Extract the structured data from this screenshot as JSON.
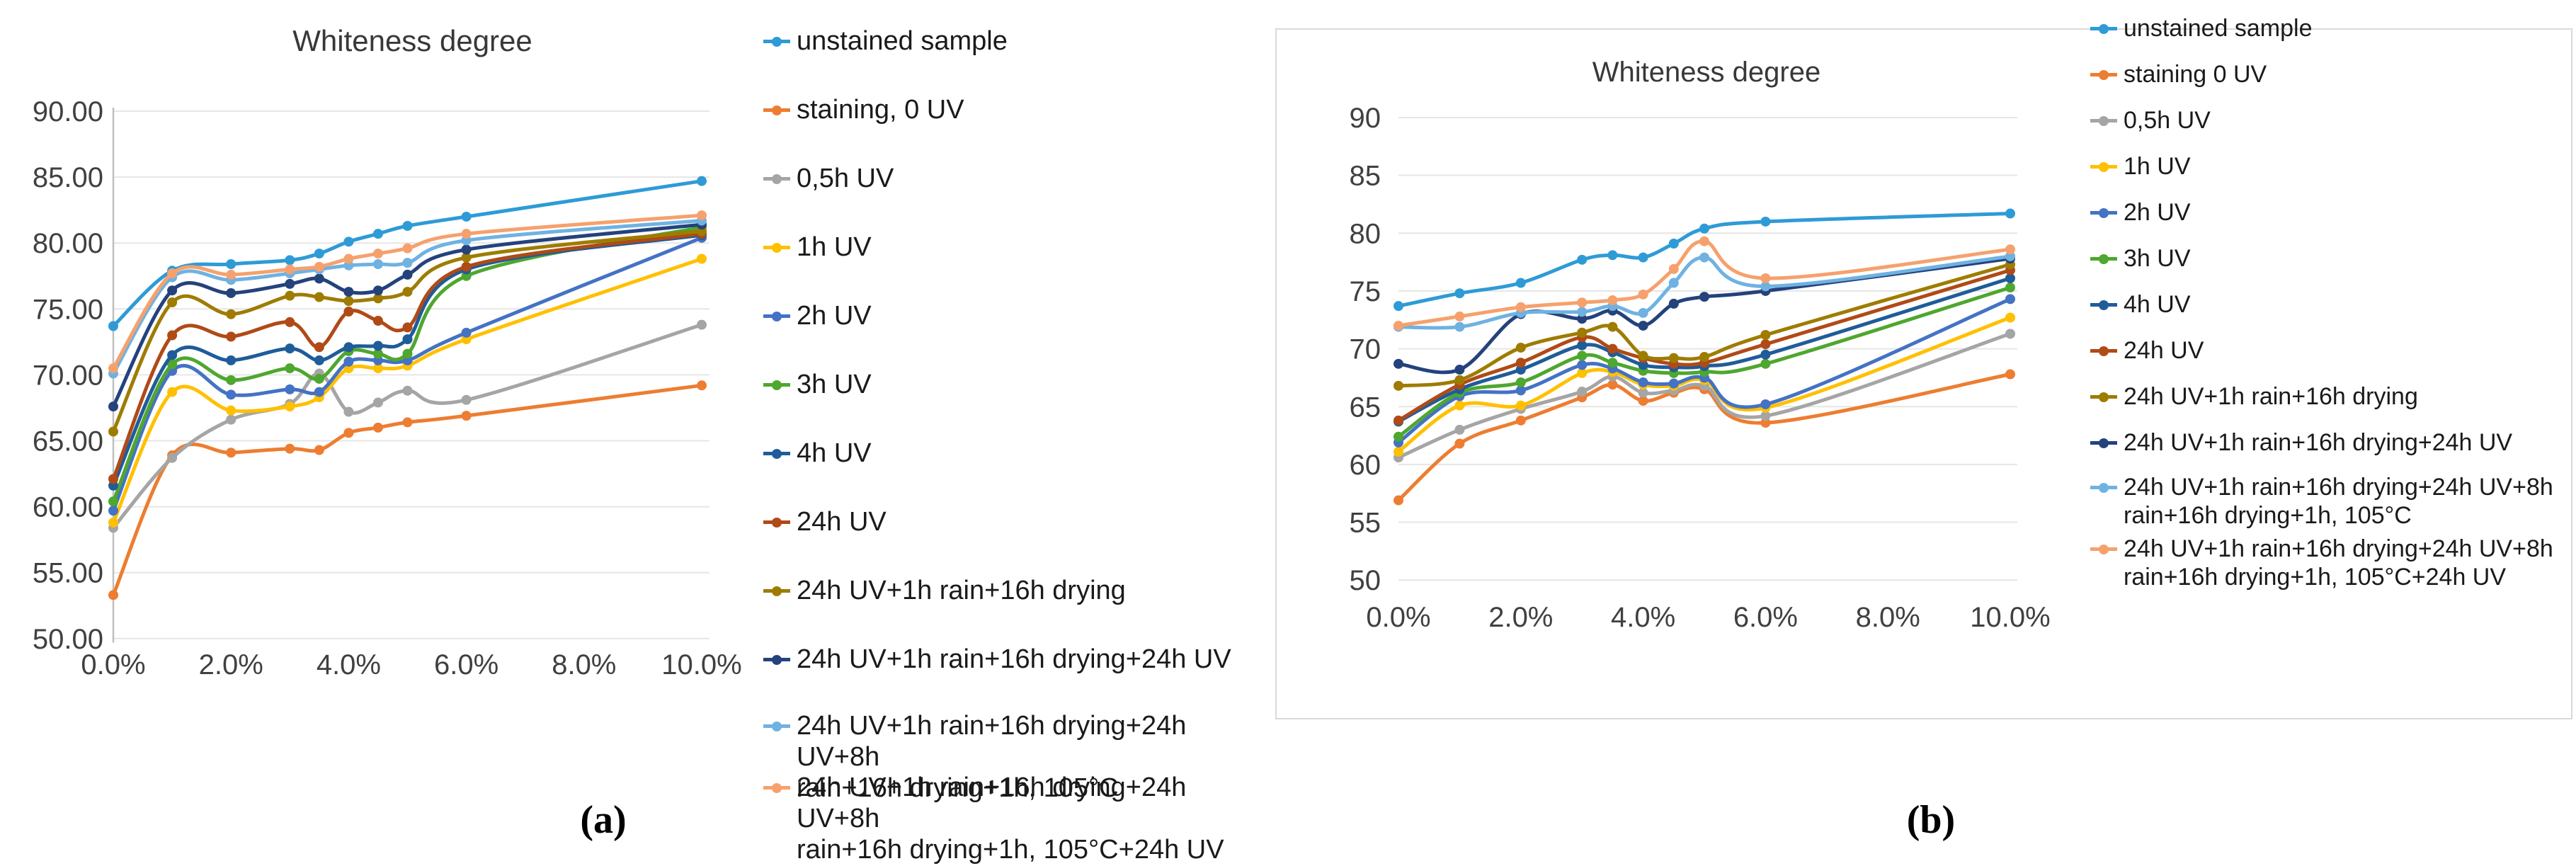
{
  "figure": {
    "captions": [
      "(a)",
      "(b)"
    ]
  },
  "style": {
    "background": "#ffffff",
    "gridline_color": "#e6e6e6",
    "axis_line_color": "#bfbfbf",
    "axis_text_color": "#404040",
    "panel_border_color": "#d9d9d9",
    "legend_text_color": "#1a1a1a"
  },
  "chart_data": [
    {
      "id": "a",
      "type": "line",
      "title": "Whiteness degree",
      "xlabel": "",
      "ylabel": "",
      "grid": true,
      "smoothed": true,
      "legend_position": "right",
      "ylim": [
        50,
        90
      ],
      "ytick_labels": [
        "90.00",
        "85.00",
        "80.00",
        "75.00",
        "70.00",
        "65.00",
        "60.00",
        "55.00",
        "50.00"
      ],
      "xtick_labels": [
        "0.0%",
        "2.0%",
        "4.0%",
        "6.0%",
        "8.0%",
        "10.0%"
      ],
      "x_percent": [
        0,
        1,
        2,
        3,
        3.5,
        4,
        4.5,
        5,
        6,
        10
      ],
      "series": [
        {
          "name": "unstained sample",
          "color": "#2e9bd6",
          "values": [
            73.7,
            77.9,
            78.4,
            78.7,
            79.2,
            80.1,
            80.7,
            81.3,
            82.0,
            84.7
          ]
        },
        {
          "name": "staining, 0 UV",
          "color": "#ed7d31",
          "values": [
            53.3,
            63.9,
            64.1,
            64.4,
            64.3,
            65.6,
            66.0,
            66.4,
            66.9,
            69.2
          ]
        },
        {
          "name": "0,5h UV",
          "color": "#a5a5a5",
          "values": [
            58.4,
            63.7,
            66.6,
            67.8,
            70.1,
            67.2,
            67.9,
            68.8,
            68.1,
            73.8
          ]
        },
        {
          "name": "1h UV",
          "color": "#ffc000",
          "values": [
            58.8,
            68.7,
            67.3,
            67.6,
            68.3,
            70.5,
            70.5,
            70.7,
            72.7,
            78.8
          ]
        },
        {
          "name": "2h UV",
          "color": "#4472c4",
          "values": [
            59.7,
            70.3,
            68.5,
            68.9,
            68.7,
            71.0,
            71.1,
            71.1,
            73.2,
            80.4
          ]
        },
        {
          "name": "3h UV",
          "color": "#4ea72e",
          "values": [
            60.4,
            70.8,
            69.6,
            70.5,
            69.7,
            71.8,
            71.6,
            71.6,
            77.5,
            81.2
          ]
        },
        {
          "name": "4h UV",
          "color": "#1f5c99",
          "values": [
            61.6,
            71.5,
            71.1,
            72.0,
            71.1,
            72.1,
            72.2,
            72.7,
            78.0,
            80.6
          ]
        },
        {
          "name": "24h UV",
          "color": "#b04a17",
          "values": [
            62.1,
            73.0,
            72.9,
            74.0,
            72.1,
            74.8,
            74.1,
            73.6,
            78.2,
            80.7
          ]
        },
        {
          "name": "24h UV+1h rain+16h drying",
          "color": "#9e7c00",
          "values": [
            65.7,
            75.5,
            74.6,
            76.0,
            75.9,
            75.6,
            75.8,
            76.3,
            78.9,
            80.9
          ]
        },
        {
          "name": "24h UV+1h rain+16h drying+24h UV",
          "color": "#24427c",
          "values": [
            67.6,
            76.4,
            76.2,
            76.9,
            77.3,
            76.3,
            76.4,
            77.6,
            79.5,
            81.4
          ]
        },
        {
          "name": "24h UV+1h rain+16h drying+24h UV+8h\nrain+16h drying+1h, 105°C",
          "color": "#6fb2e2",
          "values": [
            70.1,
            77.4,
            77.2,
            77.7,
            78.0,
            78.3,
            78.4,
            78.5,
            80.2,
            81.7
          ]
        },
        {
          "name": "24h UV+1h rain+16h drying+24h UV+8h\nrain+16h drying+1h, 105°C+24h UV",
          "color": "#f6a16d",
          "values": [
            70.5,
            77.7,
            77.6,
            78.0,
            78.2,
            78.8,
            79.2,
            79.6,
            80.7,
            82.1
          ]
        }
      ]
    },
    {
      "id": "b",
      "type": "line",
      "title": "Whiteness degree",
      "xlabel": "",
      "ylabel": "",
      "grid": true,
      "smoothed": true,
      "legend_position": "right",
      "panel_border": true,
      "ylim": [
        50,
        90
      ],
      "ytick_labels": [
        "90",
        "85",
        "80",
        "75",
        "70",
        "65",
        "60",
        "55",
        "50"
      ],
      "xtick_labels": [
        "0.0%",
        "2.0%",
        "4.0%",
        "6.0%",
        "8.0%",
        "10.0%"
      ],
      "x_percent": [
        0,
        1,
        2,
        3,
        3.5,
        4,
        4.5,
        5,
        6,
        10
      ],
      "series": [
        {
          "name": "unstained sample",
          "color": "#2e9bd6",
          "values": [
            73.7,
            74.8,
            75.7,
            77.7,
            78.1,
            77.9,
            79.1,
            80.4,
            81.0,
            81.7
          ]
        },
        {
          "name": "staining 0 UV",
          "color": "#ed7d31",
          "values": [
            56.9,
            61.8,
            63.8,
            65.8,
            66.9,
            65.5,
            66.2,
            66.5,
            63.6,
            67.8
          ]
        },
        {
          "name": "0,5h UV",
          "color": "#a5a5a5",
          "values": [
            60.6,
            63.0,
            64.8,
            66.3,
            67.6,
            66.2,
            66.4,
            66.8,
            64.2,
            71.3
          ]
        },
        {
          "name": "1h UV",
          "color": "#ffc000",
          "values": [
            61.1,
            65.1,
            65.1,
            67.9,
            68.0,
            66.9,
            66.8,
            67.3,
            64.9,
            72.7
          ]
        },
        {
          "name": "2h UV",
          "color": "#4472c4",
          "values": [
            61.9,
            65.9,
            66.4,
            68.6,
            68.3,
            67.1,
            67.0,
            67.5,
            65.2,
            74.3
          ]
        },
        {
          "name": "3h UV",
          "color": "#4ea72e",
          "values": [
            62.4,
            66.2,
            67.1,
            69.4,
            68.8,
            68.1,
            67.9,
            68.0,
            68.7,
            75.3
          ]
        },
        {
          "name": "4h UV",
          "color": "#1f5c99",
          "values": [
            63.7,
            66.5,
            68.2,
            70.3,
            69.7,
            68.6,
            68.4,
            68.5,
            69.5,
            76.1
          ]
        },
        {
          "name": "24h UV",
          "color": "#b04a17",
          "values": [
            63.8,
            66.9,
            68.8,
            71.0,
            70.0,
            69.2,
            68.7,
            68.8,
            70.4,
            76.8
          ]
        },
        {
          "name": "24h UV+1h rain+16h drying",
          "color": "#9e7c00",
          "values": [
            66.8,
            67.3,
            70.1,
            71.4,
            71.9,
            69.4,
            69.2,
            69.3,
            71.2,
            77.3
          ]
        },
        {
          "name": "24h UV+1h rain+16h drying+24h UV",
          "color": "#24427c",
          "values": [
            68.7,
            68.2,
            73.0,
            72.6,
            73.3,
            72.0,
            73.9,
            74.5,
            75.0,
            77.8
          ]
        },
        {
          "name": "24h UV+1h rain+16h drying+24h UV+8h\nrain+16h drying+1h, 105°C",
          "color": "#6fb2e2",
          "values": [
            71.9,
            71.9,
            73.1,
            73.2,
            73.7,
            73.1,
            75.7,
            77.9,
            75.4,
            78.0
          ]
        },
        {
          "name": "24h UV+1h rain+16h drying+24h UV+8h\nrain+16h drying+1h, 105°C+24h UV",
          "color": "#f6a16d",
          "values": [
            72.0,
            72.8,
            73.6,
            74.0,
            74.2,
            74.7,
            76.9,
            79.3,
            76.1,
            78.6
          ]
        }
      ]
    }
  ]
}
